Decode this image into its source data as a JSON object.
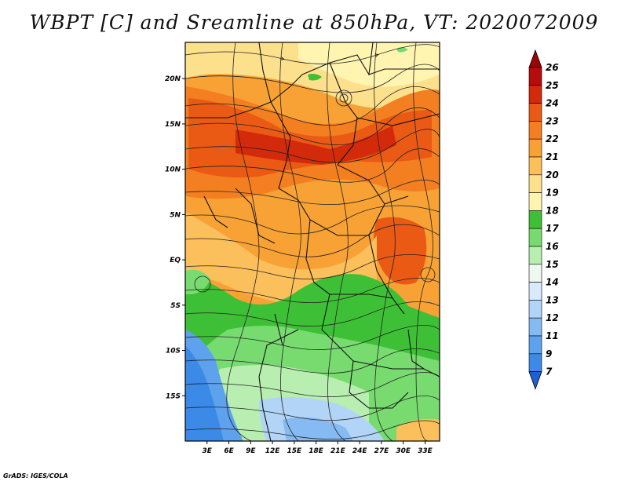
{
  "title": "WBPT [C] and Sreamline at 850hPa, VT: 2020072009",
  "credit": "GrADS: IGES/COLA",
  "map": {
    "lon_range": [
      0,
      35
    ],
    "lat_range": [
      -20,
      24
    ],
    "lon_ticks": [
      {
        "value": 3,
        "label": "3E"
      },
      {
        "value": 6,
        "label": "6E"
      },
      {
        "value": 9,
        "label": "9E"
      },
      {
        "value": 12,
        "label": "12E"
      },
      {
        "value": 15,
        "label": "15E"
      },
      {
        "value": 18,
        "label": "18E"
      },
      {
        "value": 21,
        "label": "21E"
      },
      {
        "value": 24,
        "label": "24E"
      },
      {
        "value": 27,
        "label": "27E"
      },
      {
        "value": 30,
        "label": "30E"
      },
      {
        "value": 33,
        "label": "33E"
      }
    ],
    "lat_ticks": [
      {
        "value": 20,
        "label": "20N"
      },
      {
        "value": 15,
        "label": "15N"
      },
      {
        "value": 10,
        "label": "10N"
      },
      {
        "value": 5,
        "label": "5N"
      },
      {
        "value": 0,
        "label": "EQ"
      },
      {
        "value": -5,
        "label": "5S"
      },
      {
        "value": -10,
        "label": "10S"
      },
      {
        "value": -15,
        "label": "15S"
      }
    ]
  },
  "colorbar": {
    "levels": [
      {
        "label": "7",
        "color": "#2a6fd6"
      },
      {
        "label": "9",
        "color": "#3c8ae8"
      },
      {
        "label": "11",
        "color": "#5ea2ee"
      },
      {
        "label": "12",
        "color": "#86baf2"
      },
      {
        "label": "13",
        "color": "#b2d4f7"
      },
      {
        "label": "14",
        "color": "#d8eafb"
      },
      {
        "label": "15",
        "color": "#eefaf0"
      },
      {
        "label": "16",
        "color": "#b8eeb0"
      },
      {
        "label": "17",
        "color": "#78db70"
      },
      {
        "label": "18",
        "color": "#3ec036"
      },
      {
        "label": "19",
        "color": "#fff4b0"
      },
      {
        "label": "20",
        "color": "#fde08c"
      },
      {
        "label": "21",
        "color": "#fbbf5c"
      },
      {
        "label": "22",
        "color": "#f8a235"
      },
      {
        "label": "23",
        "color": "#f37f20"
      },
      {
        "label": "24",
        "color": "#ea5a14"
      },
      {
        "label": "25",
        "color": "#d42a0c"
      },
      {
        "label": "26",
        "color": "#b50c0c"
      }
    ],
    "top_color": "#9a0606",
    "bottom_color": "#1f5fd0"
  }
}
